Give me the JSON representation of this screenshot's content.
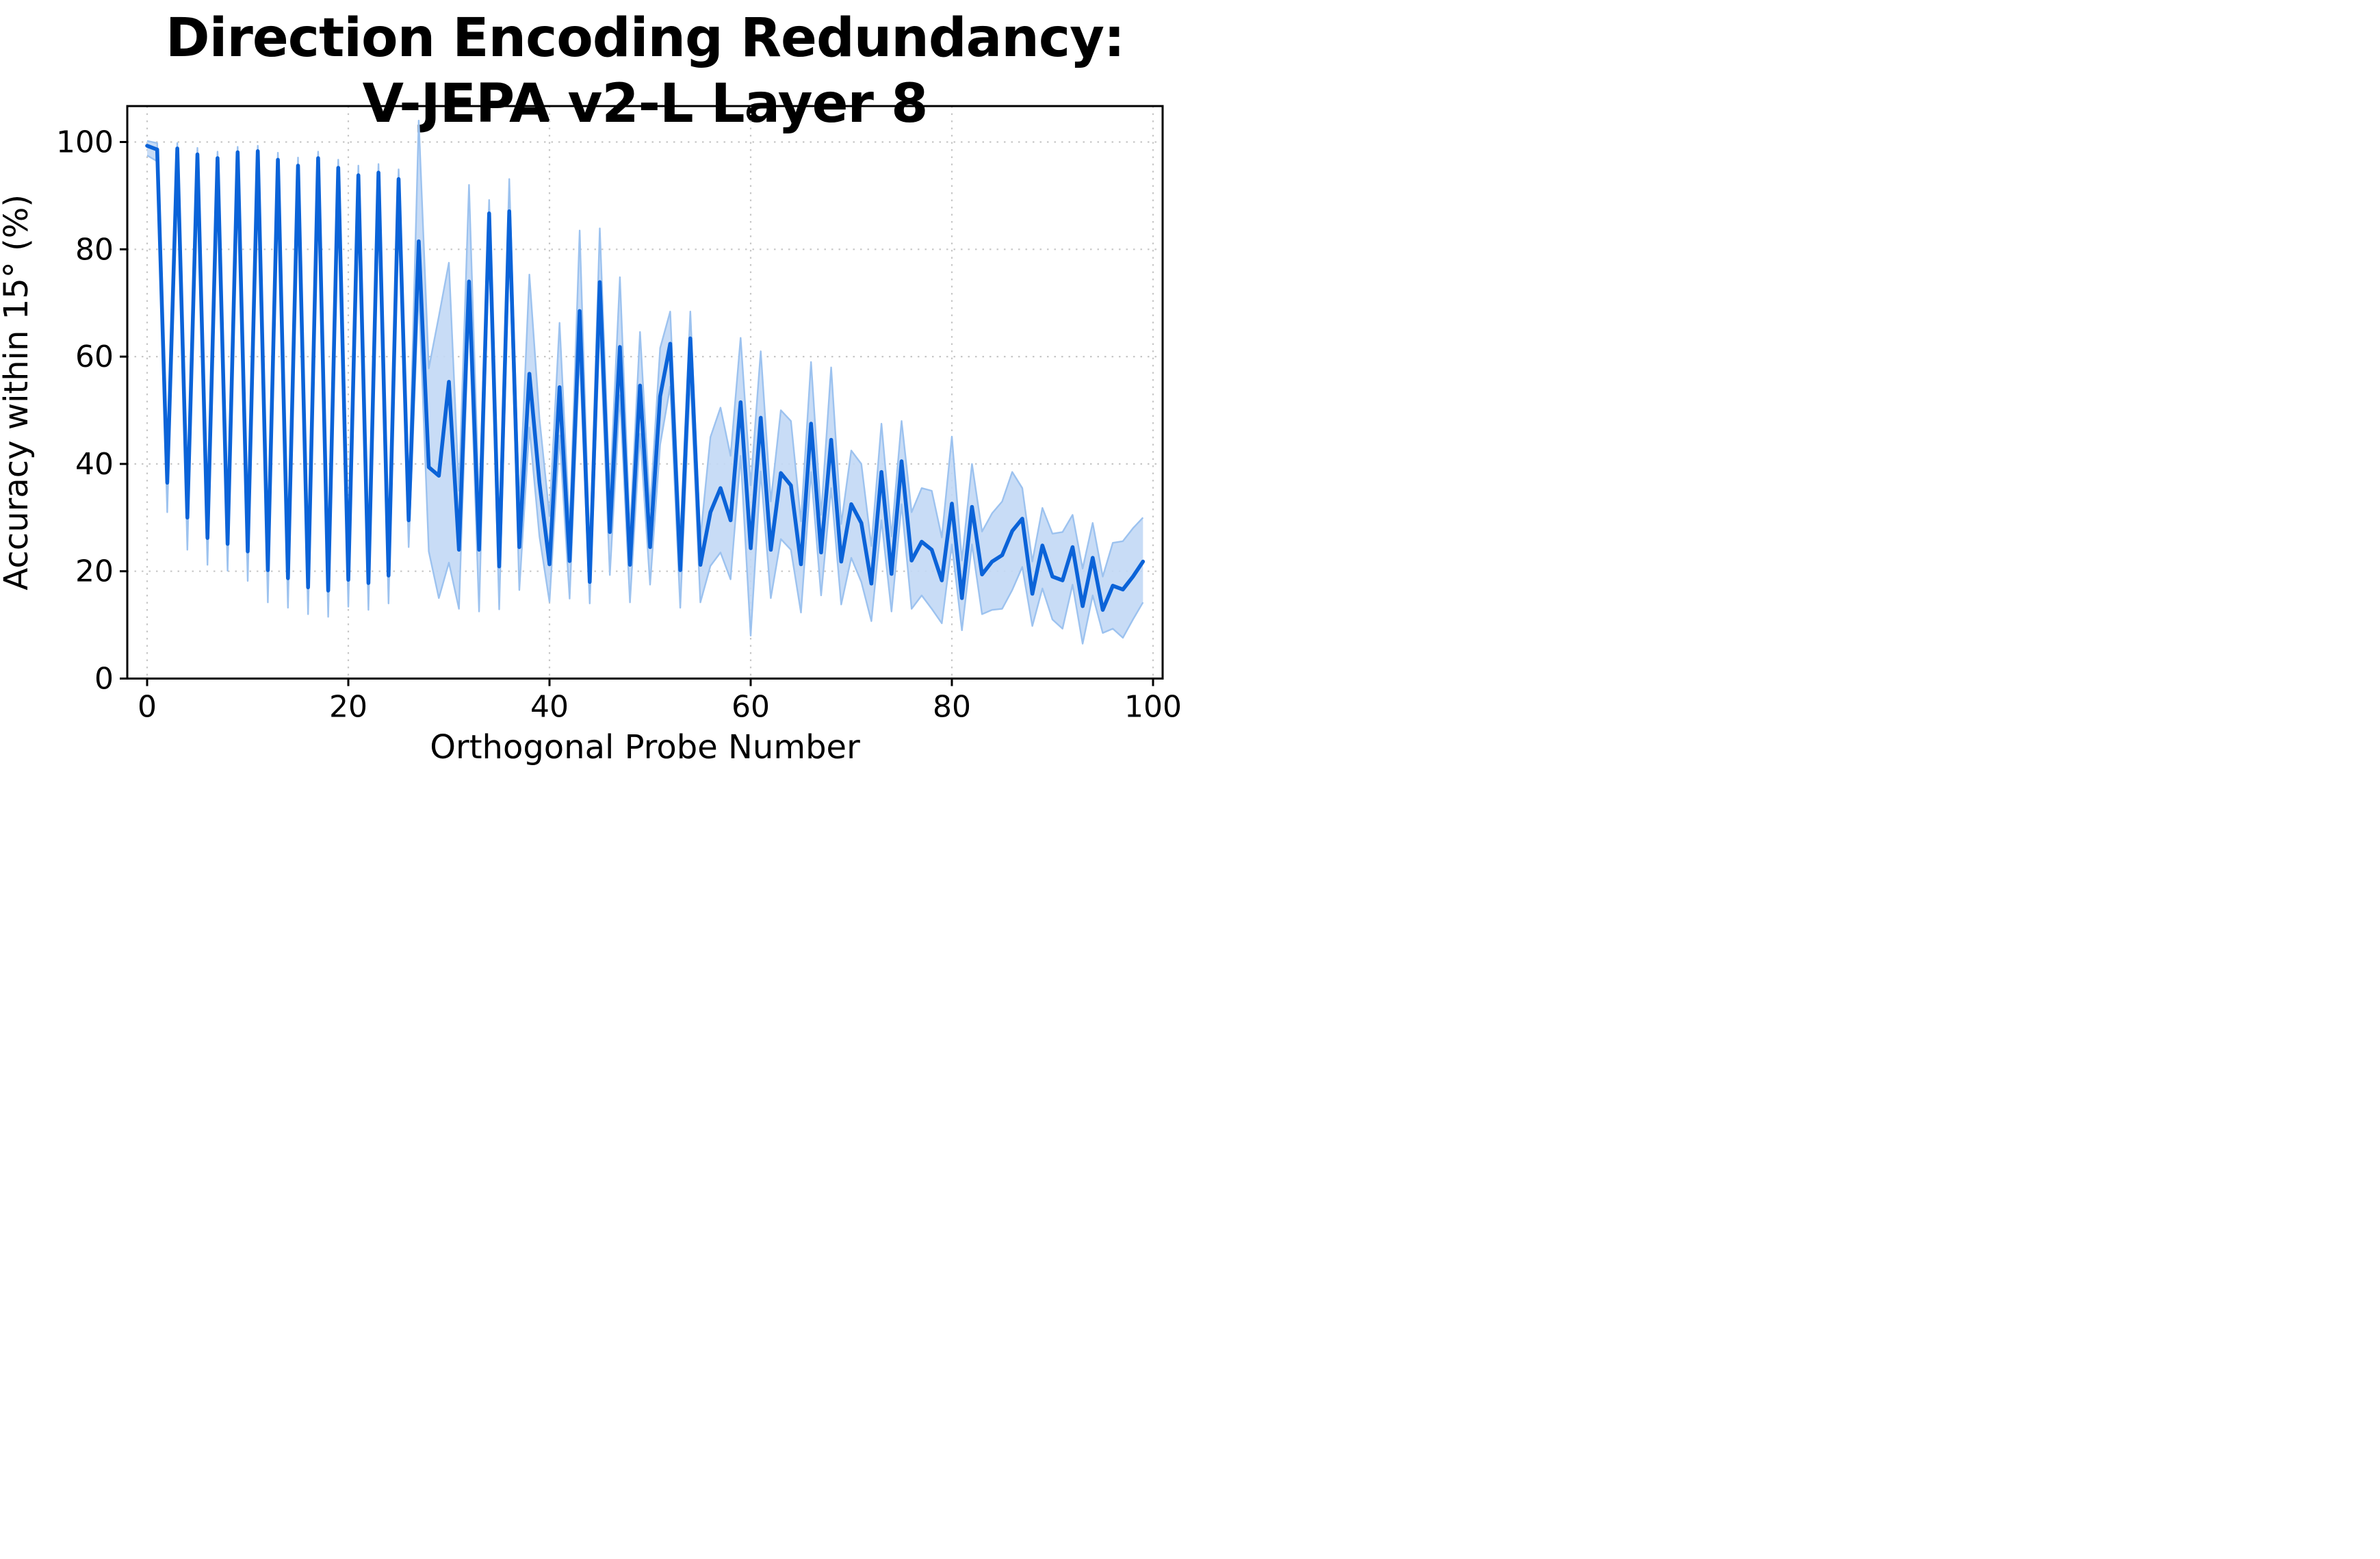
{
  "title_line1": "Direction Encoding Redundancy:",
  "title_line2": "V-JEPA v2-L Layer 8",
  "chart_data": {
    "type": "line",
    "title": "Direction Encoding Redundancy: V-JEPA v2-L Layer 8",
    "xlabel": "Orthogonal Probe Number",
    "ylabel": "Accuracy within 15° (%)",
    "x_ticks": [
      0,
      20,
      40,
      60,
      80,
      100
    ],
    "y_ticks": [
      0,
      20,
      40,
      60,
      80,
      100
    ],
    "xlim": [
      -2,
      101
    ],
    "ylim": [
      0,
      106.7
    ],
    "grid": true,
    "grid_style": "dotted",
    "legend_position": "none",
    "series": [
      {
        "name": "mean accuracy within 15 degrees",
        "x": [
          0,
          1,
          2,
          3,
          4,
          5,
          6,
          7,
          8,
          9,
          10,
          11,
          12,
          13,
          14,
          15,
          16,
          17,
          18,
          19,
          20,
          21,
          22,
          23,
          24,
          25,
          26,
          27,
          28,
          29,
          30,
          31,
          32,
          33,
          34,
          35,
          36,
          37,
          38,
          39,
          40,
          41,
          42,
          43,
          44,
          45,
          46,
          47,
          48,
          49,
          50,
          51,
          52,
          53,
          54,
          55,
          56,
          57,
          58,
          59,
          60,
          61,
          62,
          63,
          64,
          65,
          66,
          67,
          68,
          69,
          70,
          71,
          72,
          73,
          74,
          75,
          76,
          77,
          78,
          79,
          80,
          81,
          82,
          83,
          84,
          85,
          86,
          87,
          88,
          89,
          90,
          91,
          92,
          93,
          94,
          95,
          96,
          97,
          98,
          99
        ],
        "y": [
          99.3,
          98.6,
          36.5,
          98.8,
          30,
          97.7,
          26.2,
          97,
          25.1,
          98.1,
          23.7,
          98.3,
          20.2,
          96.7,
          18.7,
          95.6,
          17,
          97,
          16.4,
          95.2,
          18.4,
          93.8,
          17.8,
          94.3,
          19.2,
          93.1,
          29.5,
          81.5,
          39.4,
          37.8,
          55.3,
          24,
          74,
          24,
          86.7,
          20.9,
          87.1,
          24.5,
          56.8,
          36.5,
          21.3,
          54.3,
          21.9,
          68.5,
          18,
          73.9,
          27.3,
          61.8,
          21.2,
          54.6,
          24.5,
          52.6,
          62.4,
          20.2,
          63.4,
          21.2,
          31,
          35.5,
          29.5,
          51.5,
          24.3,
          48.6,
          24,
          38.3,
          36,
          21.3,
          47.5,
          23.5,
          44.5,
          21.8,
          32.5,
          29,
          17.7,
          38.5,
          19.5,
          40.5,
          22,
          25.5,
          24,
          18.3,
          32.6,
          15,
          32,
          19.4,
          21.8,
          23,
          27.5,
          29.8,
          15.8,
          24.8,
          19,
          18.3,
          24.5,
          13.5,
          22.5,
          12.8,
          17.3,
          16.6,
          19,
          21.8
        ]
      },
      {
        "name": "confidence band upper",
        "y": [
          100.2,
          99.8,
          41,
          99.8,
          34,
          98.9,
          30.2,
          98.2,
          29.1,
          99.1,
          27.7,
          99.3,
          24.2,
          98,
          22.7,
          97.1,
          21,
          98.2,
          20.4,
          96.7,
          22.9,
          95.6,
          22.3,
          95.9,
          23.7,
          94.9,
          33.5,
          104,
          57.8,
          67.5,
          77.5,
          35,
          92,
          32,
          89.2,
          26.9,
          93.1,
          31.5,
          75.3,
          48.5,
          30.3,
          66.3,
          27.9,
          83.5,
          23,
          83.9,
          34.3,
          74.8,
          27.2,
          64.6,
          31.5,
          61.6,
          68.4,
          26.2,
          68.4,
          26.2,
          45,
          50.5,
          41.5,
          63.5,
          36,
          61,
          33,
          50,
          48,
          29.3,
          59,
          30.5,
          58,
          28.8,
          42.5,
          40,
          24.7,
          47.5,
          26.5,
          48,
          31,
          35.5,
          35,
          26.3,
          45.1,
          22,
          40,
          27.4,
          30.8,
          33,
          38.5,
          35.5,
          21.8,
          31.8,
          27,
          27.3,
          30.5,
          20.5,
          29,
          19,
          25.3,
          25.6,
          28,
          30
        ]
      },
      {
        "name": "confidence band lower",
        "y": [
          97.5,
          96.4,
          31,
          96.8,
          24,
          95.2,
          21.2,
          94.5,
          20.1,
          96.1,
          18.2,
          96.3,
          14.2,
          94.1,
          13.2,
          92.6,
          12,
          94.6,
          11.5,
          92.2,
          13.4,
          90.3,
          12.8,
          91.1,
          14,
          89.5,
          24.5,
          72.5,
          23.7,
          15,
          21.6,
          13,
          68,
          12.5,
          81.7,
          12.9,
          81.1,
          16.5,
          46.8,
          26.5,
          14.3,
          45.3,
          14.9,
          60.5,
          14,
          65.9,
          19.3,
          52.8,
          14.2,
          45.6,
          17.5,
          43.6,
          54.4,
          13.2,
          56.4,
          14.2,
          21,
          23.5,
          18.5,
          41.5,
          8,
          38.6,
          15,
          26,
          24,
          12.3,
          38.5,
          15.5,
          35.5,
          13.8,
          22.5,
          18,
          10.7,
          29.5,
          12.5,
          32.5,
          13,
          15.5,
          13,
          10.3,
          25,
          9,
          25,
          12,
          12.8,
          13,
          16.5,
          20.8,
          9.8,
          16.8,
          11,
          9.3,
          17.5,
          6.5,
          15.5,
          8.5,
          9.3,
          7.6,
          11,
          14.2
        ]
      }
    ],
    "colors": {
      "line": "#0b63d8",
      "band_fill": "#c2d8f5",
      "band_edge": "#9cc2ef",
      "grid": "#c7c7c7",
      "spine": "#000000",
      "text": "#000000",
      "background": "#ffffff"
    }
  }
}
